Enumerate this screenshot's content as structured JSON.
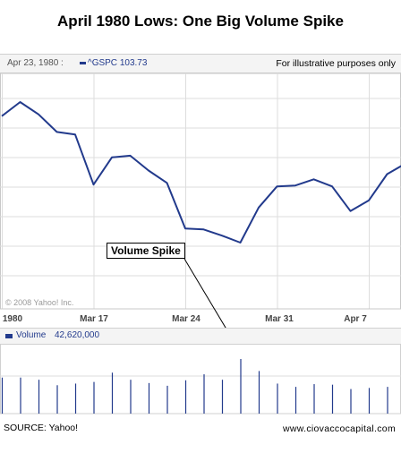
{
  "title": "April 1980 Lows:  One Big Volume Spike",
  "header": {
    "date_label": "Apr 23, 1980 :",
    "ticker": "^GSPC",
    "ticker_value": "103.73",
    "note": "For illustrative purposes only"
  },
  "copyright": "© 2008 Yahoo! Inc.",
  "annotation": "Volume Spike",
  "volume_header": {
    "label": "Volume",
    "value": "42,620,000"
  },
  "footer": {
    "source": "SOURCE: Yahoo!",
    "site": "www.ciovaccocapital.com"
  },
  "colors": {
    "line": "#223a8c",
    "grid": "#dddddd",
    "header_bg": "#f4f4f4"
  },
  "chart_data": [
    {
      "type": "line",
      "title": "April 1980 Lows:  One Big Volume Spike",
      "x_tick_labels": [
        "1980",
        "Mar 17",
        "Mar 24",
        "Mar 31",
        "Apr 7"
      ],
      "series": [
        {
          "name": "^GSPC",
          "values": [
            105.4,
            107.0,
            105.6,
            103.6,
            103.3,
            97.6,
            100.7,
            100.9,
            99.2,
            97.8,
            92.6,
            92.5,
            91.8,
            91.0,
            95.0,
            97.4,
            97.5,
            98.2,
            97.4,
            94.6,
            95.8,
            98.8,
            100.0
          ]
        }
      ],
      "grid": true,
      "legend": "none"
    },
    {
      "type": "bar",
      "series": [
        {
          "name": "Volume",
          "values": [
            0.66,
            0.66,
            0.62,
            0.52,
            0.55,
            0.58,
            0.75,
            0.62,
            0.56,
            0.51,
            0.61,
            0.72,
            0.62,
            1.0,
            0.78,
            0.55,
            0.49,
            0.54,
            0.53,
            0.45,
            0.47,
            0.49,
            0.53
          ]
        }
      ]
    }
  ]
}
